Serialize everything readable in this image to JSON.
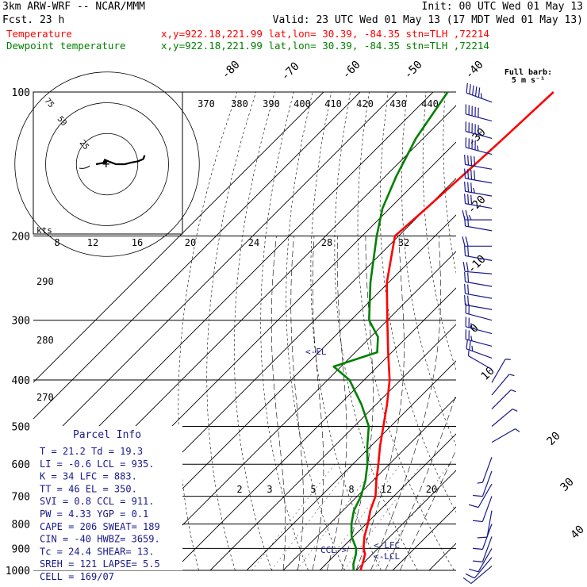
{
  "header": {
    "model": "3km ARW-WRF -- NCAR/MMM",
    "init": "Init: 00 UTC Wed 01 May 13",
    "fcst": "Fcst.    23 h",
    "valid": "Valid: 23 UTC Wed 01 May 13 (17 MDT Wed 01 May 13)",
    "temp_label": "Temperature",
    "temp_loc": "x,y=922.18,221.99   lat,lon= 30.39, -84.35   stn=TLH ,72214",
    "dew_label": "Dewpoint temperature",
    "dew_loc": "x,y=922.18,221.99   lat,lon= 30.39, -84.35   stn=TLH ,72214"
  },
  "colors": {
    "temperature": "#ff0000",
    "dewpoint": "#008000",
    "annotation": "#1a1a8c",
    "wind": "#1a1a8c"
  },
  "barb_legend": [
    "Full barb:",
    "5 m s⁻¹"
  ],
  "parcel": {
    "title": "Parcel Info",
    "rows": [
      "T  =    21.2  Td =  19.3",
      "LI =    -0.6  LCL =  935.",
      "K  =      34  LFC =  883.",
      "TT =      46  EL  =  350.",
      "SVI =    0.8  CCL =  911.",
      "PW =    4.33  YGP =    0.1",
      "CAPE =   206  SWEAT=   189",
      "CIN =    -40  HWBZ= 3659.",
      "Tc =    24.4  SHEAR=   13.",
      "SREH =   121  LAPSE=   5.5",
      "CELL = 169/07"
    ]
  },
  "chart_data": {
    "type": "skew-t",
    "pressure_levels": [
      100,
      200,
      300,
      400,
      500,
      600,
      700,
      800,
      900,
      1000
    ],
    "pressure_tick_labels": [
      "100",
      "200",
      "300",
      "400",
      "500",
      "600",
      "700",
      "800",
      "900",
      "1000"
    ],
    "isotherm_labels": [
      "-80",
      "-70",
      "-60",
      "-50",
      "-40",
      "-30",
      "-20",
      "-10",
      "0",
      "10",
      "20",
      "30",
      "40"
    ],
    "theta_labels": [
      "370",
      "380",
      "390",
      "400",
      "410",
      "420",
      "430",
      "440"
    ],
    "hodograph_speed_labels": [
      "8",
      "12",
      "16",
      "20",
      "24",
      "28",
      "32"
    ],
    "hodograph_ring_labels": [
      "75",
      "50",
      "25"
    ],
    "hodograph_unit": "kts",
    "thetae_labels": [
      "290",
      "280",
      "270"
    ],
    "mixing_ratio_labels": [
      "2",
      "3",
      "5",
      "8",
      "12",
      "20"
    ],
    "annotations": [
      "<-EL",
      "<-LFC",
      "<-LCL",
      "CCL->"
    ],
    "temperature_profile": [
      {
        "p": 1000,
        "t": 21.2
      },
      {
        "p": 970,
        "t": 20.0
      },
      {
        "p": 925,
        "t": 18.0
      },
      {
        "p": 900,
        "t": 16.0
      },
      {
        "p": 850,
        "t": 13.0
      },
      {
        "p": 800,
        "t": 10.5
      },
      {
        "p": 750,
        "t": 7.5
      },
      {
        "p": 700,
        "t": 5.0
      },
      {
        "p": 650,
        "t": 1.0
      },
      {
        "p": 600,
        "t": -3.0
      },
      {
        "p": 550,
        "t": -7.5
      },
      {
        "p": 500,
        "t": -12.0
      },
      {
        "p": 450,
        "t": -17.0
      },
      {
        "p": 400,
        "t": -23.0
      },
      {
        "p": 350,
        "t": -31.0
      },
      {
        "p": 300,
        "t": -40.0
      },
      {
        "p": 250,
        "t": -50.5
      },
      {
        "p": 200,
        "t": -61.0
      },
      {
        "p": 175,
        "t": -60.0
      },
      {
        "p": 150,
        "t": -59.0
      },
      {
        "p": 125,
        "t": -58.0
      },
      {
        "p": 100,
        "t": -57.0
      }
    ],
    "dewpoint_profile": [
      {
        "p": 1000,
        "t": 19.3
      },
      {
        "p": 970,
        "t": 17.5
      },
      {
        "p": 925,
        "t": 15.5
      },
      {
        "p": 900,
        "t": 14.0
      },
      {
        "p": 850,
        "t": 9.5
      },
      {
        "p": 800,
        "t": 6.0
      },
      {
        "p": 750,
        "t": 3.0
      },
      {
        "p": 700,
        "t": 1.0
      },
      {
        "p": 650,
        "t": -2.0
      },
      {
        "p": 600,
        "t": -6.0
      },
      {
        "p": 550,
        "t": -11.0
      },
      {
        "p": 500,
        "t": -16.0
      },
      {
        "p": 450,
        "t": -24.0
      },
      {
        "p": 400,
        "t": -34.0
      },
      {
        "p": 375,
        "t": -42.0
      },
      {
        "p": 350,
        "t": -34.0
      },
      {
        "p": 325,
        "t": -38.0
      },
      {
        "p": 300,
        "t": -45.0
      },
      {
        "p": 250,
        "t": -55.0
      },
      {
        "p": 200,
        "t": -66.0
      },
      {
        "p": 175,
        "t": -72.0
      },
      {
        "p": 150,
        "t": -77.0
      },
      {
        "p": 125,
        "t": -82.0
      },
      {
        "p": 100,
        "t": -86.0
      }
    ],
    "wind_profile": [
      {
        "p": 105,
        "dir": 290,
        "spd": 55
      },
      {
        "p": 115,
        "dir": 285,
        "spd": 50
      },
      {
        "p": 125,
        "dir": 285,
        "spd": 50
      },
      {
        "p": 135,
        "dir": 285,
        "spd": 45
      },
      {
        "p": 145,
        "dir": 280,
        "spd": 40
      },
      {
        "p": 155,
        "dir": 280,
        "spd": 40
      },
      {
        "p": 165,
        "dir": 280,
        "spd": 35
      },
      {
        "p": 175,
        "dir": 280,
        "spd": 30
      },
      {
        "p": 185,
        "dir": 270,
        "spd": 25
      },
      {
        "p": 195,
        "dir": 280,
        "spd": 20
      },
      {
        "p": 210,
        "dir": 270,
        "spd": 20
      },
      {
        "p": 225,
        "dir": 280,
        "spd": 20
      },
      {
        "p": 240,
        "dir": 275,
        "spd": 20
      },
      {
        "p": 255,
        "dir": 280,
        "spd": 20
      },
      {
        "p": 270,
        "dir": 280,
        "spd": 20
      },
      {
        "p": 285,
        "dir": 280,
        "spd": 20
      },
      {
        "p": 300,
        "dir": 285,
        "spd": 20
      },
      {
        "p": 320,
        "dir": 285,
        "spd": 25
      },
      {
        "p": 340,
        "dir": 285,
        "spd": 25
      },
      {
        "p": 360,
        "dir": 290,
        "spd": 25
      },
      {
        "p": 380,
        "dir": 300,
        "spd": 5
      },
      {
        "p": 405,
        "dir": 30,
        "spd": 5
      },
      {
        "p": 430,
        "dir": 40,
        "spd": 5
      },
      {
        "p": 460,
        "dir": 45,
        "spd": 5
      },
      {
        "p": 500,
        "dir": 50,
        "spd": 5
      },
      {
        "p": 540,
        "dir": 60,
        "spd": 5
      },
      {
        "p": 580,
        "dir": 200,
        "spd": 5
      },
      {
        "p": 620,
        "dir": 200,
        "spd": 10
      },
      {
        "p": 660,
        "dir": 210,
        "spd": 10
      },
      {
        "p": 700,
        "dir": 200,
        "spd": 10
      },
      {
        "p": 750,
        "dir": 190,
        "spd": 10
      },
      {
        "p": 800,
        "dir": 200,
        "spd": 10
      },
      {
        "p": 850,
        "dir": 200,
        "spd": 10
      },
      {
        "p": 900,
        "dir": 210,
        "spd": 10
      },
      {
        "p": 940,
        "dir": 220,
        "spd": 10
      },
      {
        "p": 980,
        "dir": 230,
        "spd": 10
      }
    ],
    "hodograph_trace": [
      {
        "u": -7.5,
        "v": 0.0
      },
      {
        "u": -3.0,
        "v": 0.8
      },
      {
        "u": 0.0,
        "v": 1.5
      },
      {
        "u": -2.0,
        "v": 2.0
      },
      {
        "u": -1.5,
        "v": 3.0
      },
      {
        "u": 2.0,
        "v": 1.5
      },
      {
        "u": 6.0,
        "v": 0.0
      },
      {
        "u": 12.0,
        "v": 0.0
      },
      {
        "u": 16.0,
        "v": 1.0
      },
      {
        "u": 21.0,
        "v": 2.0
      },
      {
        "u": 24.5,
        "v": 3.5
      },
      {
        "u": 25.5,
        "v": 6.0
      }
    ],
    "hodograph_rings": [
      25,
      50,
      75
    ]
  }
}
